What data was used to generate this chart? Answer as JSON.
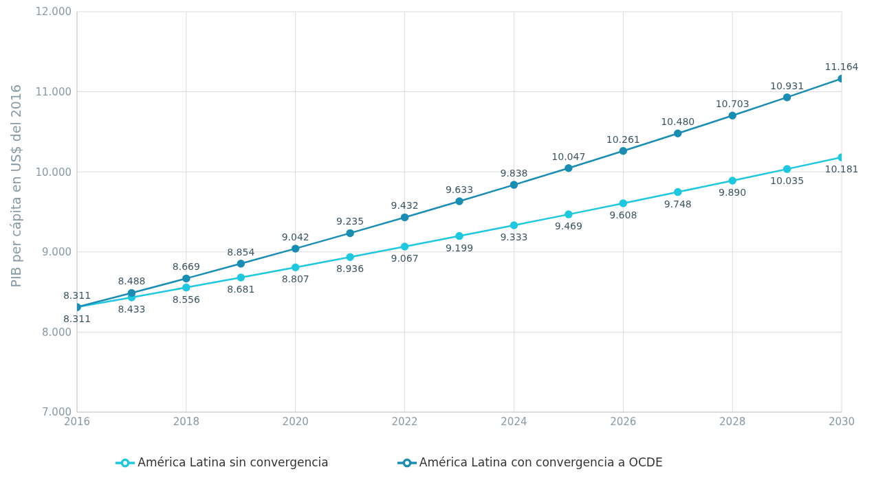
{
  "chart_data": {
    "type": "line",
    "ylabel": "PIB per cápita en US$ del 2016",
    "x": [
      2016,
      2017,
      2018,
      2019,
      2020,
      2021,
      2022,
      2023,
      2024,
      2025,
      2026,
      2027,
      2028,
      2029,
      2030
    ],
    "series": [
      {
        "name": "América Latina sin convergencia",
        "color": "#1ec8de",
        "values": [
          8311,
          8433,
          8556,
          8681,
          8807,
          8936,
          9067,
          9199,
          9333,
          9469,
          9608,
          9748,
          9890,
          10035,
          10181
        ],
        "value_labels": [
          "8.311",
          "8.433",
          "8.556",
          "8.681",
          "8.807",
          "8.936",
          "9.067",
          "9.199",
          "9.333",
          "9.469",
          "9.608",
          "9.748",
          "9.890",
          "10.035",
          "10.181"
        ]
      },
      {
        "name": "América Latina con convergencia a OCDE",
        "color": "#1a8db3",
        "values": [
          8311,
          8488,
          8669,
          8854,
          9042,
          9235,
          9432,
          9633,
          9838,
          10047,
          10261,
          10480,
          10703,
          10931,
          11164
        ],
        "value_labels": [
          "8.311",
          "8.488",
          "8.669",
          "8.854",
          "9.042",
          "9.235",
          "9.432",
          "9.633",
          "9.838",
          "10.047",
          "10.261",
          "10.480",
          "10.703",
          "10.931",
          "11.164"
        ]
      }
    ],
    "xlim": [
      2016,
      2030
    ],
    "xticks": [
      2016,
      2018,
      2020,
      2022,
      2024,
      2026,
      2028,
      2030
    ],
    "ylim": [
      7000,
      12000
    ],
    "yticks": [
      {
        "value": 7000,
        "label": "7.000"
      },
      {
        "value": 8000,
        "label": "8.000"
      },
      {
        "value": 9000,
        "label": "9.000"
      },
      {
        "value": 10000,
        "label": "10.000"
      },
      {
        "value": 11000,
        "label": "11.000"
      },
      {
        "value": 12000,
        "label": "12.000"
      }
    ],
    "grid": true,
    "legend": "bottom",
    "marker": "circle",
    "line_style": "solid"
  }
}
